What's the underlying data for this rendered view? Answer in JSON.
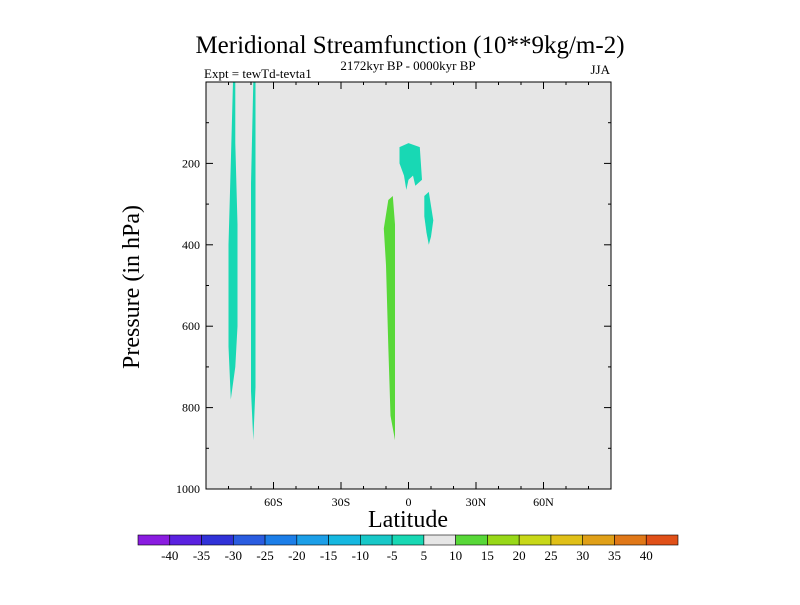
{
  "chart_data": {
    "type": "contour",
    "title": "Meridional Streamfunction (10**9kg/m-2)",
    "subtitle_left": "Expt = tewTd-tevta1",
    "subtitle_center": "2172kyr BP - 0000kyr BP",
    "subtitle_right": "JJA",
    "xlabel": "Latitude",
    "ylabel": "Pressure (in hPa)",
    "xlim": [
      -90,
      90
    ],
    "ylim": [
      1000,
      0
    ],
    "x_ticks": [
      {
        "value": -60,
        "label": "60S"
      },
      {
        "value": -30,
        "label": "30S"
      },
      {
        "value": 0,
        "label": "0"
      },
      {
        "value": 30,
        "label": "30N"
      },
      {
        "value": 60,
        "label": "60N"
      }
    ],
    "y_ticks": [
      {
        "value": 200,
        "label": "200"
      },
      {
        "value": 400,
        "label": "400"
      },
      {
        "value": 600,
        "label": "600"
      },
      {
        "value": 800,
        "label": "800"
      },
      {
        "value": 1000,
        "label": "1000"
      }
    ],
    "background_color": "#e6e6e6",
    "regions": [
      {
        "name": "negative-cell-south-1",
        "level": "-10 to -5",
        "color": "#18d8b4",
        "points": [
          [
            -78,
            0
          ],
          [
            -77,
            0
          ],
          [
            -77,
            150
          ],
          [
            -76,
            350
          ],
          [
            -76,
            600
          ],
          [
            -77,
            700
          ],
          [
            -79,
            780
          ],
          [
            -80,
            650
          ],
          [
            -80,
            400
          ],
          [
            -79,
            200
          ]
        ]
      },
      {
        "name": "negative-cell-south-2",
        "level": "-10 to -5",
        "color": "#18d8b4",
        "points": [
          [
            -69,
            0
          ],
          [
            -68,
            0
          ],
          [
            -68,
            250
          ],
          [
            -68,
            500
          ],
          [
            -68,
            750
          ],
          [
            -69,
            880
          ],
          [
            -70,
            760
          ],
          [
            -70,
            500
          ],
          [
            -70,
            250
          ]
        ]
      },
      {
        "name": "negative-cell-upper-tropics",
        "level": "-10 to -5",
        "color": "#18d8b4",
        "points": [
          [
            -4,
            160
          ],
          [
            0,
            150
          ],
          [
            5,
            160
          ],
          [
            6,
            240
          ],
          [
            3,
            255
          ],
          [
            2,
            230
          ],
          [
            0,
            240
          ],
          [
            -1,
            265
          ],
          [
            -2,
            230
          ],
          [
            -4,
            200
          ]
        ]
      },
      {
        "name": "negative-cell-upper-tropics-2",
        "level": "-10 to -5",
        "color": "#18d8b4",
        "points": [
          [
            7,
            280
          ],
          [
            9,
            270
          ],
          [
            11,
            340
          ],
          [
            10,
            380
          ],
          [
            9,
            400
          ],
          [
            8,
            370
          ],
          [
            7,
            330
          ]
        ]
      },
      {
        "name": "positive-cell-tropics",
        "level": "5 to 10",
        "color": "#58d838",
        "points": [
          [
            -9,
            290
          ],
          [
            -7,
            280
          ],
          [
            -6,
            350
          ],
          [
            -6,
            500
          ],
          [
            -6,
            700
          ],
          [
            -6,
            880
          ],
          [
            -8,
            820
          ],
          [
            -9,
            650
          ],
          [
            -10,
            450
          ],
          [
            -11,
            360
          ]
        ]
      }
    ],
    "colorbar": {
      "labels": [
        "-40",
        "-35",
        "-30",
        "-25",
        "-20",
        "-15",
        "-10",
        "-5",
        "5",
        "10",
        "15",
        "20",
        "25",
        "30",
        "35",
        "40"
      ],
      "colors": [
        "#8a1ce0",
        "#5a21e0",
        "#3032d8",
        "#2a5ce0",
        "#1c7ee8",
        "#1c9fe8",
        "#16b8e0",
        "#18c8c8",
        "#18d8b4",
        "#e6e6e6",
        "#58d838",
        "#98d818",
        "#c8d818",
        "#e0c018",
        "#e0a018",
        "#e07818",
        "#e05018"
      ]
    }
  }
}
